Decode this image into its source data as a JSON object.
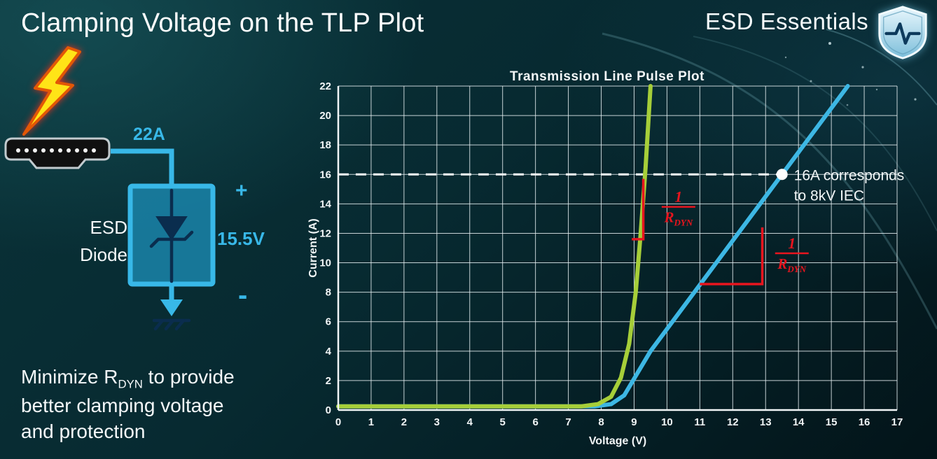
{
  "slide": {
    "title": "Clamping Voltage on the TLP Plot",
    "brand": "ESD Essentials"
  },
  "colors": {
    "accent_cyan": "#38b8e8",
    "annotation_red": "#e8151e",
    "lightning_yellow": "#ffe417",
    "curve_green": "#a6ce39",
    "curve_blue": "#3db7e4"
  },
  "diagram": {
    "surge_current_label": "22A",
    "device_line1": "ESD",
    "device_line2": "Diode",
    "plus_label": "+",
    "clamp_voltage_label": "15.5V",
    "minus_label": "-"
  },
  "caption": {
    "line1_pre": "Minimize R",
    "line1_sub": "DYN",
    "line1_post": " to provide",
    "line2": "better clamping voltage",
    "line3": "and protection"
  },
  "chart_data": {
    "type": "line",
    "title": "Transmission Line Pulse Plot",
    "xlabel": "Voltage (V)",
    "ylabel": "Current (A)",
    "xlim": [
      0,
      17
    ],
    "ylim": [
      0,
      22
    ],
    "x_ticks": [
      0,
      1,
      2,
      3,
      4,
      5,
      6,
      7,
      8,
      9,
      10,
      11,
      12,
      13,
      14,
      15,
      16,
      17
    ],
    "y_ticks": [
      0,
      2,
      4,
      6,
      8,
      10,
      12,
      14,
      16,
      18,
      20,
      22
    ],
    "grid": true,
    "series": [
      {
        "name": "low-rdyn-esd-diode",
        "color": "#a6ce39",
        "points": [
          [
            0,
            0.25
          ],
          [
            7.4,
            0.25
          ],
          [
            7.9,
            0.4
          ],
          [
            8.3,
            0.9
          ],
          [
            8.6,
            2.2
          ],
          [
            8.85,
            4.5
          ],
          [
            9.05,
            8
          ],
          [
            9.2,
            12
          ],
          [
            9.35,
            16.5
          ],
          [
            9.5,
            22
          ]
        ]
      },
      {
        "name": "high-rdyn-esd-diode",
        "color": "#3db7e4",
        "points": [
          [
            0,
            0.25
          ],
          [
            7.8,
            0.25
          ],
          [
            8.3,
            0.4
          ],
          [
            8.7,
            1.0
          ],
          [
            9.1,
            2.5
          ],
          [
            9.5,
            4.0
          ],
          [
            13.5,
            16
          ],
          [
            15.5,
            22
          ]
        ]
      }
    ],
    "reference_line": {
      "y": 16,
      "x_start": 0,
      "x_end": 13.5,
      "color": "#ffffff",
      "style": "dashed"
    },
    "marker": {
      "x": 13.5,
      "y": 16,
      "color": "#ffffff",
      "label_line1": "16A corresponds",
      "label_line2": "to 8kV IEC"
    },
    "slope_annotations": [
      {
        "path": [
          [
            9.28,
            15.7
          ],
          [
            9.28,
            11.6
          ],
          [
            8.93,
            11.6
          ]
        ],
        "frac_x": 10.35,
        "frac_y": 13.7,
        "num": "1",
        "den": "R",
        "den_sub": "DYN",
        "color": "#e8151e"
      },
      {
        "path": [
          [
            11.0,
            8.55
          ],
          [
            12.9,
            8.55
          ],
          [
            12.9,
            12.4
          ]
        ],
        "frac_x": 13.8,
        "frac_y": 10.55,
        "num": "1",
        "den": "R",
        "den_sub": "DYN",
        "color": "#e8151e"
      }
    ]
  }
}
